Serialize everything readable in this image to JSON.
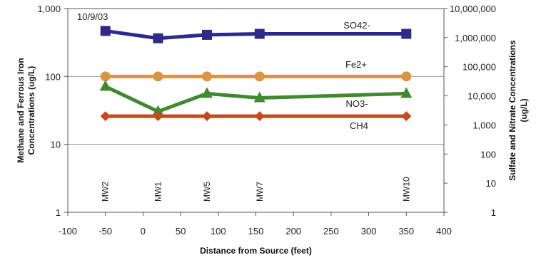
{
  "chart_data": {
    "type": "line",
    "annotation": "10/9/03",
    "xlabel": "Distance from Source (feet)",
    "ylabel_left": "Methane and Ferrous Iron Concentrations (ug/L)",
    "ylabel_right": "Sulfate and Nitrate Concentrations (ug/L)",
    "xlim": [
      -100,
      400
    ],
    "x_ticks": [
      "-100",
      "-50",
      "0",
      "50",
      "100",
      "150",
      "200",
      "250",
      "300",
      "350",
      "400"
    ],
    "y_left_scale": "log",
    "y_left_lim": [
      1,
      1000
    ],
    "y_left_ticks": [
      "1",
      "10",
      "100",
      "1,000"
    ],
    "y_right_scale": "log",
    "y_right_lim": [
      1,
      10000000
    ],
    "y_right_ticks": [
      "1",
      "10",
      "100",
      "1,000",
      "10,000",
      "100,000",
      "1,000,000",
      "10,000,000"
    ],
    "grid": "horizontal major gridlines on left axis",
    "legend": "inline labels next to series",
    "wells": [
      {
        "name": "MW2",
        "x": -50
      },
      {
        "name": "MW1",
        "x": 20
      },
      {
        "name": "MW5",
        "x": 85
      },
      {
        "name": "MW7",
        "x": 155
      },
      {
        "name": "MW10",
        "x": 350
      }
    ],
    "series": [
      {
        "name": "SO42-",
        "axis": "right",
        "marker": "square",
        "color": "#2e2a8c",
        "x": [
          -50,
          20,
          85,
          155,
          350
        ],
        "y": [
          1700000,
          950000,
          1250000,
          1350000,
          1350000
        ]
      },
      {
        "name": "Fe2+",
        "axis": "left",
        "marker": "circle",
        "color": "#d99542",
        "x": [
          -50,
          20,
          85,
          155,
          350
        ],
        "y": [
          100,
          100,
          100,
          100,
          100
        ]
      },
      {
        "name": "NO3-",
        "axis": "right",
        "marker": "triangle",
        "color": "#3f8a2e",
        "x": [
          -50,
          20,
          85,
          155,
          350
        ],
        "y": [
          21000,
          2900,
          12000,
          8500,
          12000
        ]
      },
      {
        "name": "CH4",
        "axis": "left",
        "marker": "diamond",
        "color": "#c44a1c",
        "x": [
          -50,
          20,
          85,
          155,
          350
        ],
        "y": [
          26,
          26,
          26,
          26,
          26
        ]
      }
    ]
  }
}
